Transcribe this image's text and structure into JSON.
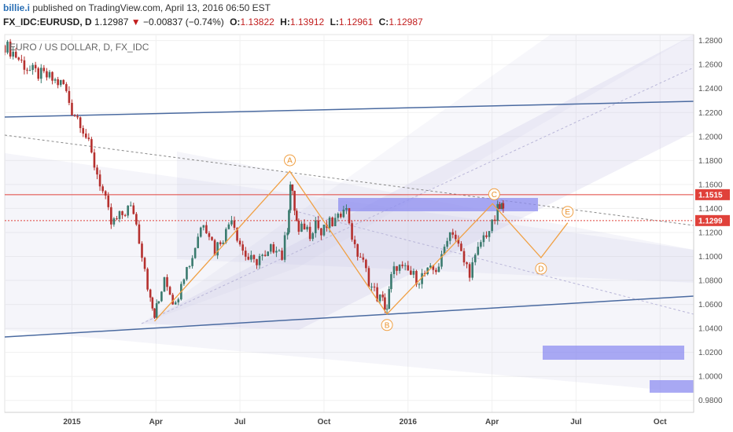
{
  "header": {
    "author": "billie.i",
    "published": "published on TradingView.com, April 13, 2016 06:50 EST",
    "symbol": "FX_IDC:EURUSD, D",
    "last": "1.12987",
    "change_arrow": "▼",
    "change": "−0.00837 (−0.74%)",
    "open_label": "O:",
    "open": "1.13822",
    "high_label": "H:",
    "high": "1.13912",
    "low_label": "L:",
    "low": "1.12961",
    "close_label": "C:",
    "close": "1.12987"
  },
  "chart_data": {
    "type": "line",
    "title": "EURO / US DOLLAR, D, FX_IDC",
    "xlabel": "",
    "ylabel": "",
    "ylim": [
      0.97,
      1.285
    ],
    "y_ticks": [
      "1.2800",
      "1.2600",
      "1.2400",
      "1.2200",
      "1.2000",
      "1.1800",
      "1.1600",
      "1.1400",
      "1.1200",
      "1.1000",
      "1.0800",
      "1.0600",
      "1.0400",
      "1.0200",
      "1.0000",
      "0.9800"
    ],
    "x_ticks": [
      {
        "label": "2015",
        "t": 12
      },
      {
        "label": "Apr",
        "t": 15
      },
      {
        "label": "Jul",
        "t": 18
      },
      {
        "label": "Oct",
        "t": 21
      },
      {
        "label": "2016",
        "t": 24
      },
      {
        "label": "Apr",
        "t": 27
      },
      {
        "label": "Jul",
        "t": 30
      },
      {
        "label": "Oct",
        "t": 33
      }
    ],
    "x_unit": "months since Jan 2014",
    "xlim": [
      9.6,
      34.2
    ],
    "series": [
      {
        "name": "",
        "values": [
          [
            9.6,
            1.276
          ],
          [
            9.9,
            1.27
          ],
          [
            10.2,
            1.262
          ],
          [
            10.5,
            1.255
          ],
          [
            10.8,
            1.252
          ],
          [
            11.1,
            1.25
          ],
          [
            11.4,
            1.246
          ],
          [
            11.7,
            1.243
          ],
          [
            12.0,
            1.222
          ],
          [
            12.3,
            1.213
          ],
          [
            12.5,
            1.2
          ],
          [
            12.7,
            1.184
          ],
          [
            13.0,
            1.162
          ],
          [
            13.2,
            1.145
          ],
          [
            13.4,
            1.127
          ],
          [
            13.6,
            1.13
          ],
          [
            13.8,
            1.135
          ],
          [
            14.0,
            1.14
          ],
          [
            14.2,
            1.138
          ],
          [
            14.4,
            1.115
          ],
          [
            14.6,
            1.092
          ],
          [
            14.8,
            1.062
          ],
          [
            14.95,
            1.05
          ],
          [
            15.1,
            1.063
          ],
          [
            15.3,
            1.085
          ],
          [
            15.5,
            1.072
          ],
          [
            15.7,
            1.058
          ],
          [
            15.9,
            1.082
          ],
          [
            16.1,
            1.09
          ],
          [
            16.3,
            1.1
          ],
          [
            16.5,
            1.118
          ],
          [
            16.7,
            1.13
          ],
          [
            16.9,
            1.12
          ],
          [
            17.1,
            1.105
          ],
          [
            17.3,
            1.114
          ],
          [
            17.5,
            1.12
          ],
          [
            17.7,
            1.135
          ],
          [
            17.9,
            1.118
          ],
          [
            18.1,
            1.105
          ],
          [
            18.3,
            1.098
          ],
          [
            18.5,
            1.094
          ],
          [
            18.7,
            1.1
          ],
          [
            18.9,
            1.097
          ],
          [
            19.1,
            1.105
          ],
          [
            19.3,
            1.11
          ],
          [
            19.5,
            1.1
          ],
          [
            19.7,
            1.125
          ],
          [
            19.8,
            1.16
          ],
          [
            19.95,
            1.14
          ],
          [
            20.1,
            1.118
          ],
          [
            20.3,
            1.126
          ],
          [
            20.5,
            1.12
          ],
          [
            20.7,
            1.13
          ],
          [
            20.9,
            1.118
          ],
          [
            21.1,
            1.125
          ],
          [
            21.3,
            1.128
          ],
          [
            21.5,
            1.13
          ],
          [
            21.7,
            1.145
          ],
          [
            21.9,
            1.13
          ],
          [
            22.1,
            1.105
          ],
          [
            22.3,
            1.1
          ],
          [
            22.5,
            1.087
          ],
          [
            22.7,
            1.074
          ],
          [
            22.9,
            1.067
          ],
          [
            23.1,
            1.062
          ],
          [
            23.25,
            1.057
          ],
          [
            23.4,
            1.082
          ],
          [
            23.6,
            1.093
          ],
          [
            23.8,
            1.088
          ],
          [
            24.0,
            1.087
          ],
          [
            24.2,
            1.083
          ],
          [
            24.4,
            1.082
          ],
          [
            24.6,
            1.085
          ],
          [
            24.8,
            1.087
          ],
          [
            25.0,
            1.09
          ],
          [
            25.2,
            1.097
          ],
          [
            25.4,
            1.118
          ],
          [
            25.6,
            1.122
          ],
          [
            25.8,
            1.108
          ],
          [
            26.0,
            1.095
          ],
          [
            26.2,
            1.088
          ],
          [
            26.4,
            1.097
          ],
          [
            26.6,
            1.112
          ],
          [
            26.8,
            1.12
          ],
          [
            27.0,
            1.125
          ],
          [
            27.2,
            1.138
          ],
          [
            27.35,
            1.142
          ],
          [
            27.45,
            1.13
          ]
        ]
      }
    ],
    "wave_points": [
      {
        "label": "A",
        "t": 19.78,
        "v": 1.171
      },
      {
        "label": "B",
        "t": 23.25,
        "v": 1.052
      },
      {
        "label": "C",
        "t": 27.02,
        "v": 1.144
      },
      {
        "label": "D",
        "t": 28.75,
        "v": 1.099
      },
      {
        "label": "E",
        "t": 29.7,
        "v": 1.128
      }
    ],
    "price_labels": [
      {
        "value": "1.1515",
        "color": "#e0413a",
        "v": 1.1515,
        "line": "solid"
      },
      {
        "value": "1.1299",
        "color": "#e0413a",
        "v": 1.1299,
        "line": "dotted"
      }
    ],
    "grid": true,
    "legend": "none"
  },
  "colors": {
    "background": "#ffffff",
    "bull": "#3a7a6e",
    "bear": "#b5302e",
    "trendline": "#4a6aa0",
    "channel_fill": "#c9c6e6",
    "wave": "#f0a044",
    "zone": "#8d8ef0",
    "support_resist": "#e0413a"
  }
}
